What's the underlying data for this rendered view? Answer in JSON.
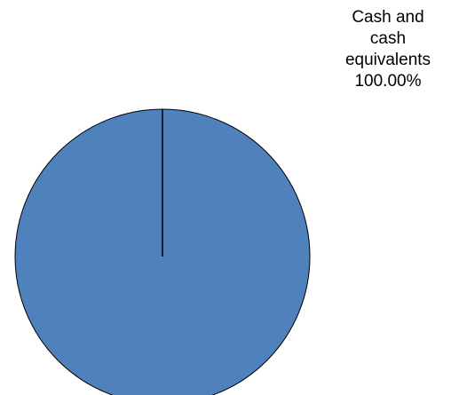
{
  "chart_data": {
    "type": "pie",
    "slices": [
      {
        "label": "Cash and cash equivalents",
        "value": 100.0,
        "label_lines": [
          "Cash and",
          "cash",
          "equivalents"
        ],
        "percent_text": "100.00%"
      }
    ],
    "colors": {
      "slice_fill": "#4f81bd",
      "slice_stroke": "#000000"
    },
    "start_angle_deg": 0,
    "legend": "none"
  }
}
